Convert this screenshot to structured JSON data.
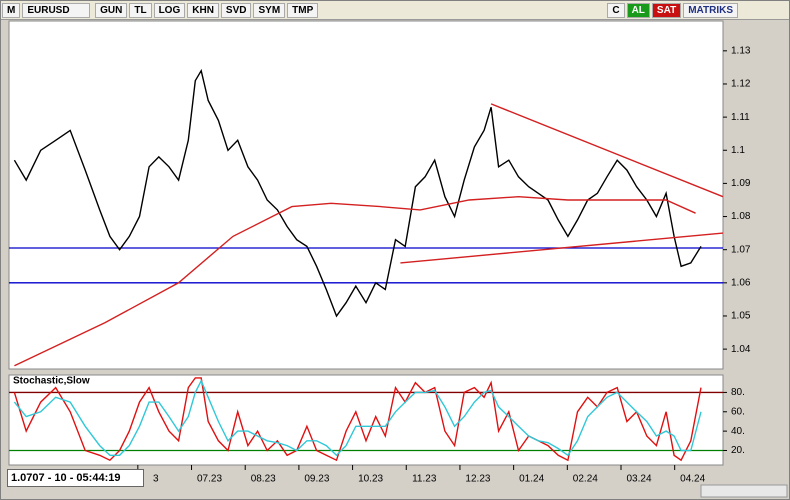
{
  "toolbar": {
    "menu": "M",
    "symbol": "EURUSD",
    "buttons": [
      "GUN",
      "TL",
      "LOG",
      "KHN",
      "SVD",
      "SYM",
      "TMP"
    ],
    "right": [
      "C",
      "AL",
      "SAT",
      "MATRIKS"
    ]
  },
  "status": "1.0707 - 10 - 05:44:19",
  "chart_data": [
    {
      "type": "line",
      "xlim": [
        2.6,
        15.9
      ],
      "ylim": [
        1.034,
        1.139
      ],
      "yticks": [
        1.04,
        1.05,
        1.06,
        1.07,
        1.08,
        1.09,
        1.1,
        1.11,
        1.12,
        1.13
      ],
      "x": [
        2.7,
        2.92,
        3.19,
        3.47,
        3.74,
        4.02,
        4.29,
        4.48,
        4.66,
        4.84,
        5.03,
        5.21,
        5.39,
        5.58,
        5.76,
        5.94,
        6.07,
        6.18,
        6.31,
        6.5,
        6.68,
        6.86,
        7.05,
        7.23,
        7.41,
        7.6,
        7.78,
        7.96,
        8.15,
        8.33,
        8.51,
        8.7,
        8.88,
        9.06,
        9.25,
        9.43,
        9.61,
        9.8,
        9.98,
        10.17,
        10.35,
        10.53,
        10.72,
        10.9,
        11.08,
        11.27,
        11.45,
        11.58,
        11.72,
        11.91,
        12.09,
        12.28,
        12.46,
        12.64,
        12.83,
        13.01,
        13.19,
        13.38,
        13.56,
        13.74,
        13.93,
        14.11,
        14.29,
        14.48,
        14.66,
        14.84,
        14.99,
        15.12,
        15.3,
        15.49
      ],
      "series": [
        {
          "color": "#000000",
          "values": [
            1.097,
            1.091,
            1.1,
            1.103,
            1.106,
            1.094,
            1.082,
            1.074,
            1.07,
            1.074,
            1.08,
            1.095,
            1.098,
            1.095,
            1.091,
            1.103,
            1.121,
            1.124,
            1.115,
            1.109,
            1.1,
            1.103,
            1.095,
            1.091,
            1.085,
            1.082,
            1.077,
            1.073,
            1.071,
            1.065,
            1.058,
            1.05,
            1.054,
            1.059,
            1.054,
            1.06,
            1.058,
            1.073,
            1.071,
            1.089,
            1.092,
            1.097,
            1.086,
            1.08,
            1.091,
            1.101,
            1.106,
            1.113,
            1.095,
            1.097,
            1.092,
            1.089,
            1.087,
            1.085,
            1.079,
            1.074,
            1.079,
            1.085,
            1.087,
            1.092,
            1.097,
            1.094,
            1.089,
            1.085,
            1.08,
            1.087,
            1.074,
            1.065,
            1.066,
            1.071
          ]
        },
        {
          "color": "#d42020",
          "x": [
            2.7,
            4.39,
            5.76,
            6.77,
            7.87,
            8.6,
            9.52,
            10.26,
            11.17,
            12.09,
            13.01,
            13.93,
            14.84,
            15.39
          ],
          "values": [
            1.035,
            1.048,
            1.06,
            1.074,
            1.083,
            1.084,
            1.083,
            1.082,
            1.085,
            1.086,
            1.085,
            1.085,
            1.085,
            1.081
          ]
        },
        {
          "color": "#d42020",
          "x": [
            11.58,
            15.9
          ],
          "values": [
            1.114,
            1.086
          ]
        },
        {
          "color": "#d42020",
          "x": [
            9.89,
            15.9
          ],
          "values": [
            1.066,
            1.075
          ]
        }
      ],
      "hlines": [
        {
          "value": 1.0705,
          "color": "#0000cc"
        },
        {
          "value": 1.06,
          "color": "#0000cc"
        }
      ]
    },
    {
      "type": "line",
      "title": "Stochastic,Slow",
      "xlim": [
        2.6,
        15.9
      ],
      "ylim": [
        5,
        98
      ],
      "yticks": [
        {
          "value": 20,
          "label": "20."
        },
        {
          "value": 40,
          "label": "40."
        },
        {
          "value": 60,
          "label": "60."
        },
        {
          "value": 80,
          "label": "80."
        }
      ],
      "xticks": [
        {
          "value": 5,
          "label": "3"
        },
        {
          "value": 6,
          "label": "07.23"
        },
        {
          "value": 7,
          "label": "08.23"
        },
        {
          "value": 8,
          "label": "09.23"
        },
        {
          "value": 9,
          "label": "10.23"
        },
        {
          "value": 10,
          "label": "11.23"
        },
        {
          "value": 11,
          "label": "12.23"
        },
        {
          "value": 12,
          "label": "01.24"
        },
        {
          "value": 13,
          "label": "02.24"
        },
        {
          "value": 14,
          "label": "03.24"
        },
        {
          "value": 15,
          "label": "04.24"
        }
      ],
      "x": [
        2.7,
        2.92,
        3.19,
        3.47,
        3.74,
        4.02,
        4.29,
        4.48,
        4.66,
        4.84,
        5.03,
        5.21,
        5.39,
        5.58,
        5.76,
        5.94,
        6.07,
        6.18,
        6.31,
        6.5,
        6.68,
        6.86,
        7.05,
        7.23,
        7.41,
        7.6,
        7.78,
        7.96,
        8.15,
        8.33,
        8.51,
        8.7,
        8.88,
        9.06,
        9.25,
        9.43,
        9.61,
        9.8,
        9.98,
        10.17,
        10.35,
        10.53,
        10.72,
        10.9,
        11.08,
        11.27,
        11.45,
        11.58,
        11.72,
        11.91,
        12.09,
        12.28,
        12.46,
        12.64,
        12.83,
        13.01,
        13.19,
        13.38,
        13.56,
        13.74,
        13.93,
        14.11,
        14.29,
        14.48,
        14.66,
        14.84,
        14.99,
        15.12,
        15.3,
        15.49
      ],
      "series": [
        {
          "color": "#e01010",
          "values": [
            80,
            40,
            70,
            85,
            60,
            20,
            15,
            10,
            20,
            40,
            70,
            85,
            60,
            40,
            30,
            85,
            95,
            95,
            50,
            30,
            20,
            60,
            25,
            40,
            20,
            30,
            15,
            20,
            45,
            20,
            15,
            10,
            40,
            60,
            30,
            55,
            35,
            85,
            70,
            90,
            80,
            85,
            40,
            25,
            80,
            85,
            75,
            90,
            40,
            60,
            20,
            35,
            30,
            25,
            15,
            10,
            60,
            75,
            65,
            80,
            85,
            50,
            60,
            35,
            25,
            60,
            15,
            10,
            30,
            85
          ]
        },
        {
          "color": "#30c8d8",
          "values": [
            70,
            55,
            60,
            75,
            70,
            45,
            25,
            15,
            15,
            25,
            45,
            70,
            70,
            55,
            40,
            55,
            80,
            92,
            75,
            50,
            30,
            40,
            40,
            35,
            30,
            28,
            25,
            20,
            30,
            30,
            25,
            15,
            25,
            45,
            45,
            45,
            45,
            60,
            70,
            80,
            80,
            82,
            65,
            45,
            55,
            70,
            80,
            82,
            65,
            55,
            45,
            35,
            30,
            28,
            22,
            15,
            30,
            55,
            65,
            75,
            80,
            70,
            60,
            50,
            35,
            40,
            35,
            20,
            20,
            60
          ]
        }
      ],
      "hlines": [
        {
          "value": 80,
          "color": "#800000"
        },
        {
          "value": 20,
          "color": "#008000"
        }
      ]
    }
  ]
}
